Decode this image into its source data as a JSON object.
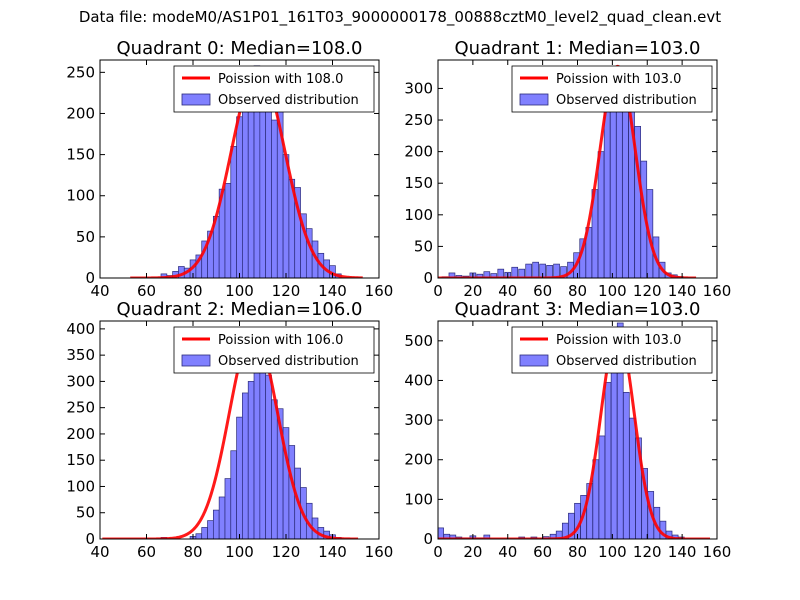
{
  "suptitle": "Data file: modeM0/AS1P01_161T03_9000000178_00888cztM0_level2_quad_clean.evt",
  "colors": {
    "bar_fill": "#8080ff",
    "bar_edge": "#2a2a7a",
    "line": "#ff0000",
    "frame": "#000000"
  },
  "chart_data": [
    {
      "type": "bar",
      "title": "Quadrant 0: Median=108.0",
      "legend": {
        "position": "top-right",
        "line_label": "Poission with 108.0",
        "bar_label": "Observed distribution"
      },
      "xlim": [
        40,
        160
      ],
      "ylim": [
        0,
        265
      ],
      "xticks": [
        40,
        60,
        80,
        100,
        120,
        140,
        160
      ],
      "yticks": [
        0,
        50,
        100,
        150,
        200,
        250
      ],
      "bin_width": 2.5,
      "bins_x": [
        67.5,
        70,
        72.5,
        75,
        77.5,
        80,
        82.5,
        85,
        87.5,
        90,
        92.5,
        95,
        97.5,
        100,
        102.5,
        105,
        107.5,
        110,
        112.5,
        115,
        117.5,
        120,
        122.5,
        125,
        127.5,
        130,
        132.5,
        135,
        137.5,
        140,
        142.5
      ],
      "counts": [
        5,
        3,
        8,
        14,
        12,
        22,
        28,
        45,
        57,
        75,
        108,
        115,
        160,
        196,
        233,
        214,
        258,
        232,
        230,
        192,
        207,
        150,
        120,
        110,
        78,
        60,
        45,
        30,
        22,
        15,
        5
      ],
      "fit": {
        "label": "Poission with 108.0",
        "mean": 108.0,
        "amplitude": 255,
        "sigma": 11.5,
        "x_range": [
          53,
          153
        ]
      }
    },
    {
      "type": "bar",
      "title": "Quadrant 1: Median=103.0",
      "legend": {
        "position": "top-right",
        "line_label": "Poission with 103.0",
        "bar_label": "Observed distribution"
      },
      "xlim": [
        0,
        160
      ],
      "ylim": [
        0,
        345
      ],
      "xticks": [
        0,
        20,
        40,
        60,
        80,
        100,
        120,
        140,
        160
      ],
      "yticks": [
        0,
        50,
        100,
        150,
        200,
        250,
        300
      ],
      "bin_width": 3.4,
      "bins_x": [
        4,
        8,
        12,
        16,
        20,
        24,
        28,
        32,
        36,
        40,
        44,
        48,
        52,
        56,
        60,
        64,
        68,
        72,
        76,
        79.5,
        83,
        86.5,
        90,
        93.5,
        97,
        100.5,
        104,
        107.5,
        111,
        114.5,
        118,
        121.5,
        125,
        128.5,
        132,
        135.5,
        139
      ],
      "counts": [
        2,
        8,
        4,
        3,
        8,
        6,
        10,
        7,
        14,
        9,
        17,
        14,
        22,
        25,
        22,
        20,
        22,
        18,
        25,
        40,
        62,
        80,
        140,
        200,
        275,
        330,
        315,
        320,
        300,
        240,
        185,
        140,
        65,
        25,
        8,
        5,
        2
      ],
      "fit": {
        "label": "Poission with 103.0",
        "mean": 103.0,
        "amplitude": 335,
        "sigma": 10.1,
        "x_range": [
          0,
          148
        ]
      }
    },
    {
      "type": "bar",
      "title": "Quadrant 2: Median=106.0",
      "legend": {
        "position": "top-right",
        "line_label": "Poission with 106.0",
        "bar_label": "Observed distribution"
      },
      "xlim": [
        40,
        160
      ],
      "ylim": [
        0,
        415
      ],
      "xticks": [
        40,
        60,
        80,
        100,
        120,
        140,
        160
      ],
      "yticks": [
        0,
        50,
        100,
        150,
        200,
        250,
        300,
        350,
        400
      ],
      "bin_width": 2.5,
      "bins_x": [
        67.5,
        80,
        82.5,
        85,
        87.5,
        90,
        92.5,
        95,
        97.5,
        100,
        102.5,
        105,
        107.5,
        110,
        112.5,
        115,
        117.5,
        120,
        122.5,
        125,
        127.5,
        130,
        132.5,
        135,
        137.5,
        140,
        142.5
      ],
      "counts": [
        3,
        5,
        10,
        22,
        35,
        55,
        80,
        115,
        168,
        232,
        278,
        300,
        330,
        385,
        312,
        265,
        248,
        212,
        178,
        135,
        98,
        68,
        40,
        22,
        15,
        8,
        3
      ],
      "fit": {
        "label": "Poission with 106.0",
        "mean": 106.0,
        "amplitude": 395,
        "sigma": 10.4,
        "x_range": [
          41,
          151
        ]
      }
    },
    {
      "type": "bar",
      "title": "Quadrant 3: Median=103.0",
      "legend": {
        "position": "top-right",
        "line_label": "Poission with 103.0",
        "bar_label": "Observed distribution"
      },
      "xlim": [
        0,
        160
      ],
      "ylim": [
        0,
        550
      ],
      "xticks": [
        0,
        20,
        40,
        60,
        80,
        100,
        120,
        140,
        160
      ],
      "yticks": [
        0,
        100,
        200,
        300,
        400,
        500
      ],
      "bin_width": 3.4,
      "bins_x": [
        1.5,
        5,
        8.5,
        12,
        16,
        20,
        24,
        28,
        48,
        55,
        62,
        66,
        69.5,
        73,
        76.5,
        80,
        83.5,
        87,
        90.5,
        94,
        97.5,
        101,
        104.5,
        108,
        111.5,
        115,
        118.5,
        122,
        125.5,
        129,
        132.5,
        136,
        139.5
      ],
      "counts": [
        28,
        12,
        10,
        5,
        3,
        8,
        3,
        10,
        5,
        5,
        6,
        12,
        20,
        40,
        65,
        90,
        110,
        140,
        200,
        260,
        395,
        440,
        545,
        370,
        305,
        255,
        178,
        120,
        80,
        45,
        20,
        10,
        5
      ],
      "fit": {
        "label": "Poission with 103.0",
        "mean": 103.0,
        "amplitude": 525,
        "sigma": 9.5,
        "x_range": [
          0,
          156
        ]
      }
    }
  ]
}
